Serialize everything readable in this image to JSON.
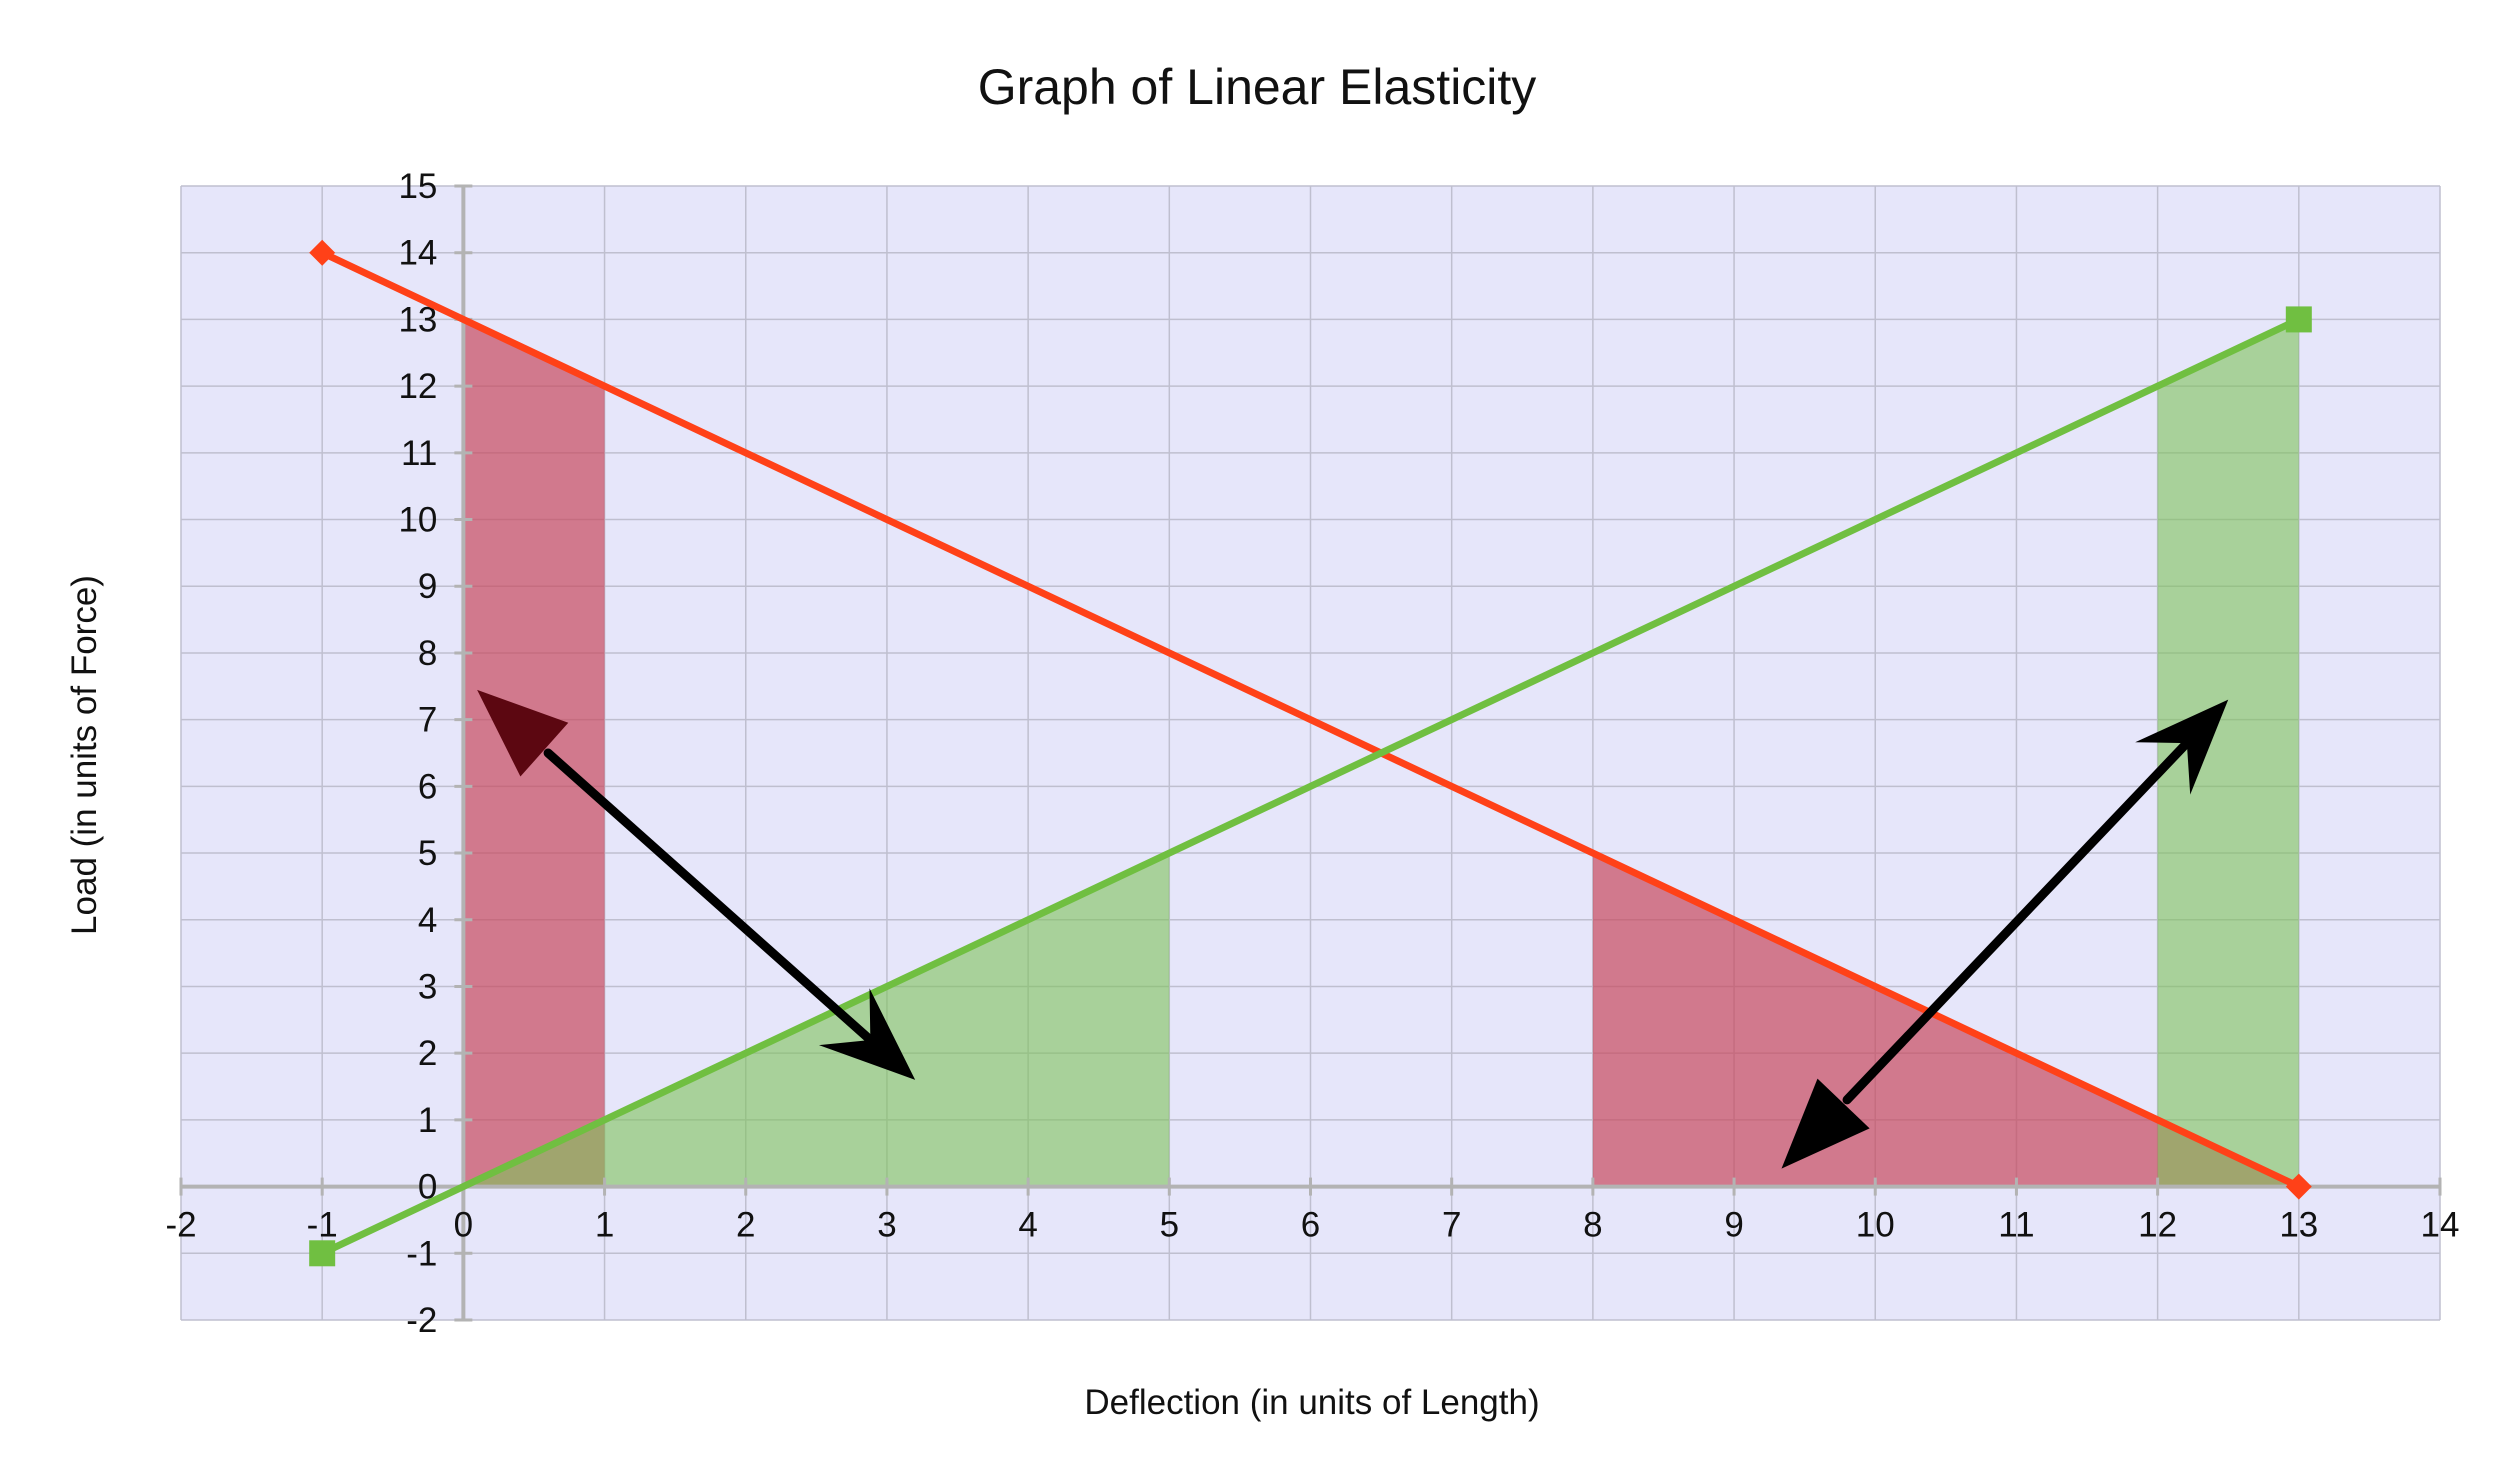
{
  "chart_data": {
    "type": "line",
    "title": "Graph of Linear Elasticity",
    "xlabel": "Deflection (in units of Length)",
    "ylabel": "Load (in units of Force)",
    "xlim": [
      -2,
      14
    ],
    "ylim": [
      -2,
      15
    ],
    "xticks": [
      -2,
      -1,
      0,
      1,
      2,
      3,
      4,
      5,
      6,
      7,
      8,
      9,
      10,
      11,
      12,
      13,
      14
    ],
    "yticks": [
      -2,
      -1,
      0,
      1,
      2,
      3,
      4,
      5,
      6,
      7,
      8,
      9,
      10,
      11,
      12,
      13,
      14,
      15
    ],
    "grid": true,
    "legend": "none",
    "series": [
      {
        "color": "#ff4118",
        "marker": "diamond",
        "x": [
          -1,
          13
        ],
        "y": [
          14,
          0
        ]
      },
      {
        "color": "#70bf41",
        "marker": "square",
        "x": [
          -1,
          13
        ],
        "y": [
          -1,
          13
        ]
      }
    ],
    "shaded_regions": [
      {
        "color": "#c84a5e",
        "opacity": 0.7,
        "points": [
          [
            0,
            0
          ],
          [
            0,
            13
          ],
          [
            1,
            12
          ],
          [
            1,
            0
          ]
        ]
      },
      {
        "color": "#7fc35a",
        "opacity": 0.6,
        "points": [
          [
            0,
            0
          ],
          [
            5,
            5
          ],
          [
            5,
            0
          ]
        ]
      },
      {
        "color": "#c84a5e",
        "opacity": 0.7,
        "points": [
          [
            8,
            0
          ],
          [
            8,
            5
          ],
          [
            13,
            0
          ]
        ]
      },
      {
        "color": "#7fc35a",
        "opacity": 0.6,
        "points": [
          [
            12,
            0
          ],
          [
            12,
            12
          ],
          [
            13,
            13
          ],
          [
            13,
            0
          ]
        ]
      }
    ],
    "arrows": [
      {
        "from": [
          0.6,
          6.5
        ],
        "to": [
          3.2,
          1.6
        ],
        "head_start": "dark-red-triangle",
        "head_end": "black-arrow"
      },
      {
        "from": [
          9.8,
          1.3
        ],
        "to": [
          12.5,
          7.3
        ],
        "head_start": "black-triangle",
        "head_end": "black-arrow"
      }
    ],
    "colors": {
      "plot_background": "#e6e6fa",
      "grid": "#bfbfcf",
      "axis": "#b3b3b3"
    }
  }
}
